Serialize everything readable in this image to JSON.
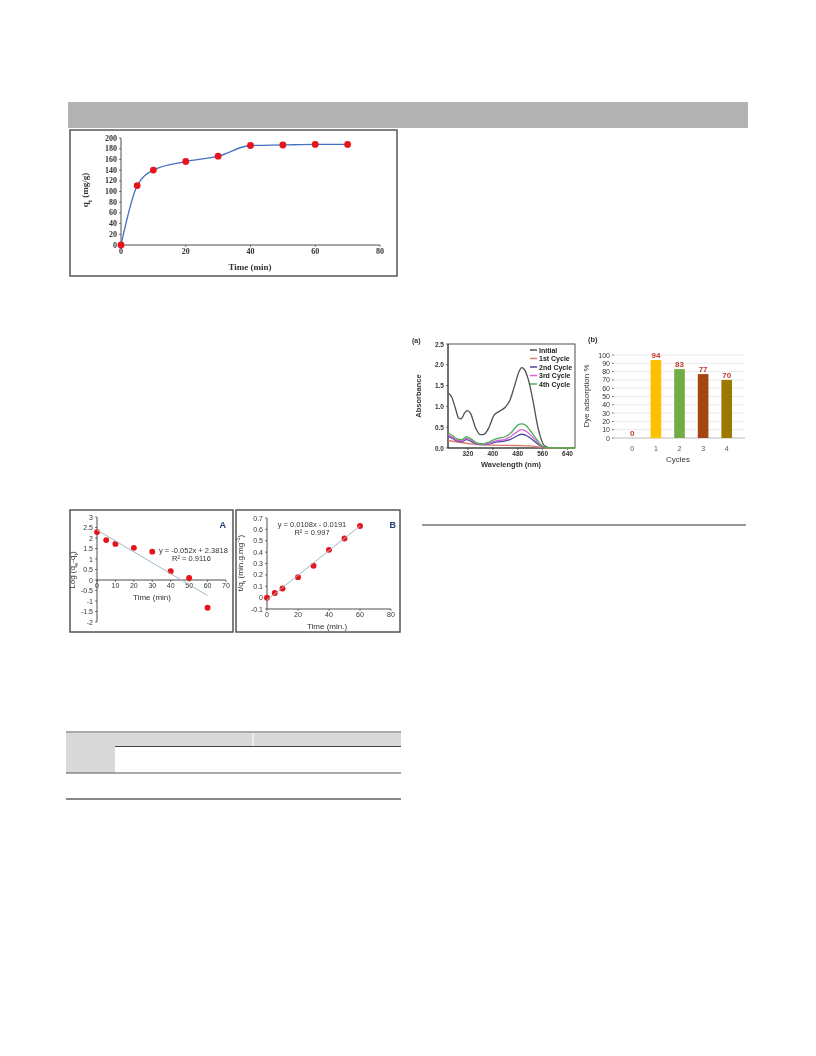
{
  "chart_data": [
    {
      "type": "line",
      "xlabel": "Time (min)",
      "ylabel": "q$_{t}$ (mg/g)",
      "x": [
        0,
        5,
        10,
        20,
        30,
        40,
        50,
        60,
        70
      ],
      "xlim": [
        0,
        80
      ],
      "xticks": [
        0,
        20,
        40,
        60,
        80
      ],
      "ylim": [
        0,
        200
      ],
      "yticks": [
        0,
        20,
        40,
        60,
        80,
        100,
        120,
        140,
        160,
        180,
        200
      ],
      "grid": false,
      "legend": false,
      "series": [
        {
          "type": "line",
          "color": "#4472c4",
          "marker": "none",
          "values": [
            0,
            111,
            140,
            156,
            166,
            186,
            187,
            188,
            188
          ]
        },
        {
          "type": "scatter",
          "color": "#e8141c",
          "marker": "circle",
          "values": [
            0,
            111,
            140,
            156,
            166,
            186,
            187,
            188,
            188
          ]
        }
      ]
    },
    {
      "type": "scatter",
      "xlabel": "Time (min)",
      "ylabel": "Log (q$_{e}$-q$_{t}$)",
      "x": [
        0,
        5,
        10,
        20,
        30,
        40,
        50,
        60
      ],
      "xlim": [
        0,
        70
      ],
      "xticks": [
        0,
        10,
        20,
        30,
        40,
        50,
        60,
        70
      ],
      "ylim": [
        -2,
        3
      ],
      "yticks": [
        -2,
        -1.5,
        -1,
        -0.5,
        0,
        0.5,
        1,
        1.5,
        2,
        2.5,
        3
      ],
      "grid": false,
      "legend": false,
      "annotations": [
        "A",
        "y = -0.052x + 2.3818",
        "R² = 0.9116"
      ],
      "series": [
        {
          "type": "scatter",
          "color": "#e8141c",
          "marker": "circle",
          "values": [
            2.28,
            1.9,
            1.72,
            1.53,
            1.35,
            0.42,
            0.1,
            -1.32
          ]
        },
        {
          "type": "line",
          "color": "#9fb8c8",
          "marker": "none",
          "x": [
            0,
            60
          ],
          "values": [
            2.38,
            -0.74
          ]
        }
      ]
    },
    {
      "type": "scatter",
      "xlabel": "Time (min.)",
      "ylabel": "t/q$_{t}$ (min.g.mg$^{-1}$)",
      "x": [
        0,
        5,
        10,
        20,
        30,
        40,
        50,
        60
      ],
      "xlim": [
        0,
        80
      ],
      "xticks": [
        0,
        20,
        40,
        60,
        80
      ],
      "ylim": [
        -0.1,
        0.7
      ],
      "yticks": [
        -0.1,
        0,
        0.1,
        0.2,
        0.3,
        0.4,
        0.5,
        0.6,
        0.7
      ],
      "grid": false,
      "legend": false,
      "annotations": [
        "B",
        "y = 0.0108x - 0.0191",
        "R² = 0.997"
      ],
      "series": [
        {
          "type": "scatter",
          "color": "#e8141c",
          "marker": "circle",
          "values": [
            0,
            0.04,
            0.08,
            0.18,
            0.28,
            0.42,
            0.52,
            0.63
          ]
        },
        {
          "type": "line",
          "color": "#9fb8c8",
          "marker": "none",
          "x": [
            0,
            60
          ],
          "values": [
            -0.02,
            0.63
          ]
        }
      ]
    },
    {
      "type": "line",
      "xlabel": "Wavelength (nm)",
      "ylabel": "Absorbance",
      "xlim": [
        256,
        664
      ],
      "xticks": [
        320,
        400,
        480,
        560,
        640
      ],
      "ylim": [
        0,
        2.5
      ],
      "yticks": [
        {
          "value": 0,
          "label": "0.0"
        },
        {
          "value": 0.5,
          "label": "0.5"
        },
        {
          "value": 1,
          "label": "1.0"
        },
        {
          "value": 1.5,
          "label": "1.5"
        },
        {
          "value": 2,
          "label": "2.0"
        },
        {
          "value": 2.5,
          "label": "2.5"
        }
      ],
      "grid": false,
      "legend": "top right",
      "marker": "none",
      "annotations": [
        "(a)"
      ],
      "series": [
        {
          "name": "Initial",
          "color": "#505050",
          "x": [
            257,
            268,
            280,
            290,
            298,
            310,
            318,
            328,
            345,
            360,
            372,
            388,
            403,
            420,
            440,
            455,
            470,
            485,
            492,
            500,
            515,
            530,
            542,
            555,
            565,
            580,
            600,
            664
          ],
          "values": [
            1.32,
            1.22,
            0.95,
            0.72,
            0.7,
            0.85,
            0.9,
            0.84,
            0.48,
            0.32,
            0.33,
            0.5,
            0.78,
            0.88,
            0.98,
            1.15,
            1.5,
            1.85,
            1.93,
            1.9,
            1.62,
            1.1,
            0.6,
            0.22,
            0.06,
            0.01,
            0,
            0
          ]
        },
        {
          "name": "1st Cycle",
          "color": "#e07a6a",
          "x": [
            257,
            300,
            330,
            400,
            480,
            520,
            550,
            570,
            664
          ],
          "values": [
            0.18,
            0.13,
            0.1,
            0.07,
            0.06,
            0.05,
            0.02,
            0,
            0
          ]
        },
        {
          "name": "2nd Cycle",
          "color": "#4a4aa0",
          "x": [
            257,
            270,
            285,
            300,
            315,
            330,
            350,
            370,
            390,
            410,
            440,
            460,
            480,
            492,
            505,
            520,
            540,
            555,
            570
          ],
          "values": [
            0.28,
            0.23,
            0.17,
            0.15,
            0.2,
            0.16,
            0.09,
            0.08,
            0.1,
            0.14,
            0.17,
            0.22,
            0.3,
            0.33,
            0.31,
            0.24,
            0.12,
            0.04,
            0.01
          ]
        },
        {
          "name": "3rd Cycle",
          "color": "#e060e0",
          "x": [
            257,
            270,
            285,
            300,
            315,
            330,
            350,
            370,
            390,
            410,
            440,
            460,
            480,
            492,
            505,
            520,
            540,
            555,
            570
          ],
          "values": [
            0.31,
            0.26,
            0.19,
            0.17,
            0.23,
            0.19,
            0.1,
            0.09,
            0.12,
            0.17,
            0.21,
            0.29,
            0.4,
            0.44,
            0.41,
            0.32,
            0.17,
            0.05,
            0.01
          ]
        },
        {
          "name": "4th Cycle",
          "color": "#4caf50",
          "x": [
            257,
            270,
            285,
            300,
            315,
            330,
            350,
            370,
            390,
            410,
            440,
            460,
            480,
            492,
            505,
            520,
            540,
            555,
            570,
            600,
            664
          ],
          "values": [
            0.36,
            0.3,
            0.22,
            0.2,
            0.27,
            0.22,
            0.12,
            0.1,
            0.15,
            0.22,
            0.27,
            0.38,
            0.55,
            0.58,
            0.55,
            0.42,
            0.22,
            0.07,
            0.01,
            0,
            0
          ]
        }
      ]
    },
    {
      "type": "bar",
      "xlabel": "Cycles",
      "ylabel": "Dye adsorption %",
      "categories": [
        "0",
        "1",
        "2",
        "3",
        "4"
      ],
      "values": [
        0,
        94,
        83,
        77,
        70
      ],
      "colors": [
        "#c0702a",
        "#ffc000",
        "#70ad47",
        "#a5450f",
        "#9c7a00"
      ],
      "ylim": [
        0,
        100
      ],
      "yticks": [
        0,
        10,
        20,
        30,
        40,
        50,
        60,
        70,
        80,
        90,
        100
      ],
      "grid": "y",
      "legend": false,
      "data_labels": true,
      "annotations": [
        "(b)"
      ]
    }
  ]
}
